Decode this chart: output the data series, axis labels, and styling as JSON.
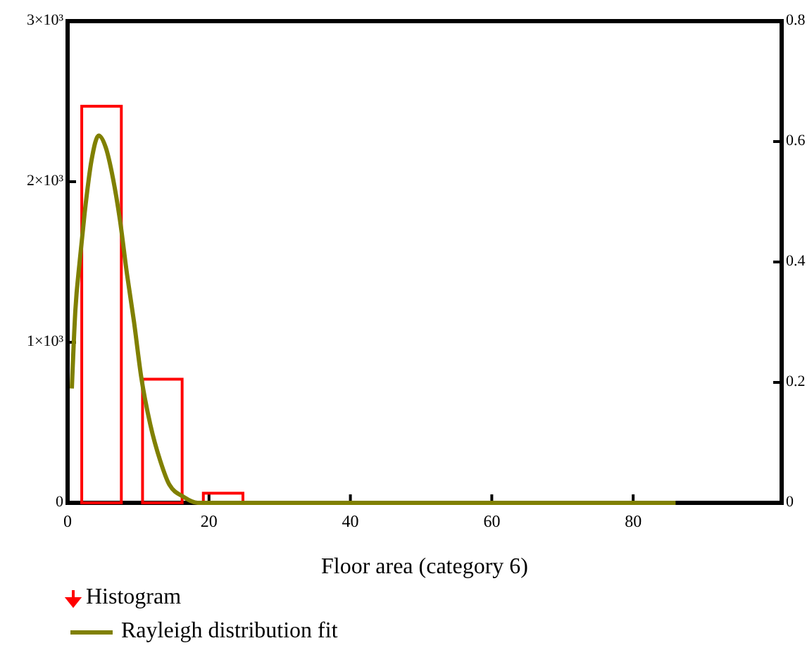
{
  "chart_data": {
    "type": "histogram",
    "xlabel": "Floor area (category 6)",
    "xlim": [
      0,
      101
    ],
    "xticks": [
      0,
      20,
      40,
      60,
      80
    ],
    "ylim": [
      0,
      3000
    ],
    "yticks": [
      0,
      {
        "value": 1000,
        "label": "1×10³"
      },
      {
        "value": 2000,
        "label": "2×10³"
      },
      {
        "value": 3000,
        "label": "3×10³"
      }
    ],
    "y2lim": [
      0,
      0.8
    ],
    "y2ticks": [
      0,
      0.2,
      0.4,
      0.6,
      0.8
    ],
    "legend": "bottom",
    "grid": false,
    "series": [
      {
        "name": "Histogram",
        "color": "#ff0000",
        "bins": [
          2,
          7.6,
          10.6,
          16.2,
          19.2,
          24.8
        ],
        "values": [
          2470,
          0,
          770,
          0,
          60
        ]
      },
      {
        "name": "Rayleigh distribution fit",
        "type": "line",
        "axis": "y2",
        "color": "#808000",
        "x": [
          0.6,
          1.1,
          1.7,
          2.4,
          3.4,
          4.4,
          5.4,
          6.4,
          7.4,
          8.4,
          9.4,
          10.4,
          11.7,
          13.1,
          14.4,
          16.4,
          18.4,
          20,
          86
        ],
        "values": [
          0.19,
          0.32,
          0.4,
          0.48,
          0.57,
          0.61,
          0.59,
          0.54,
          0.47,
          0.38,
          0.3,
          0.21,
          0.13,
          0.07,
          0.03,
          0.01,
          0,
          0,
          0
        ]
      }
    ]
  }
}
